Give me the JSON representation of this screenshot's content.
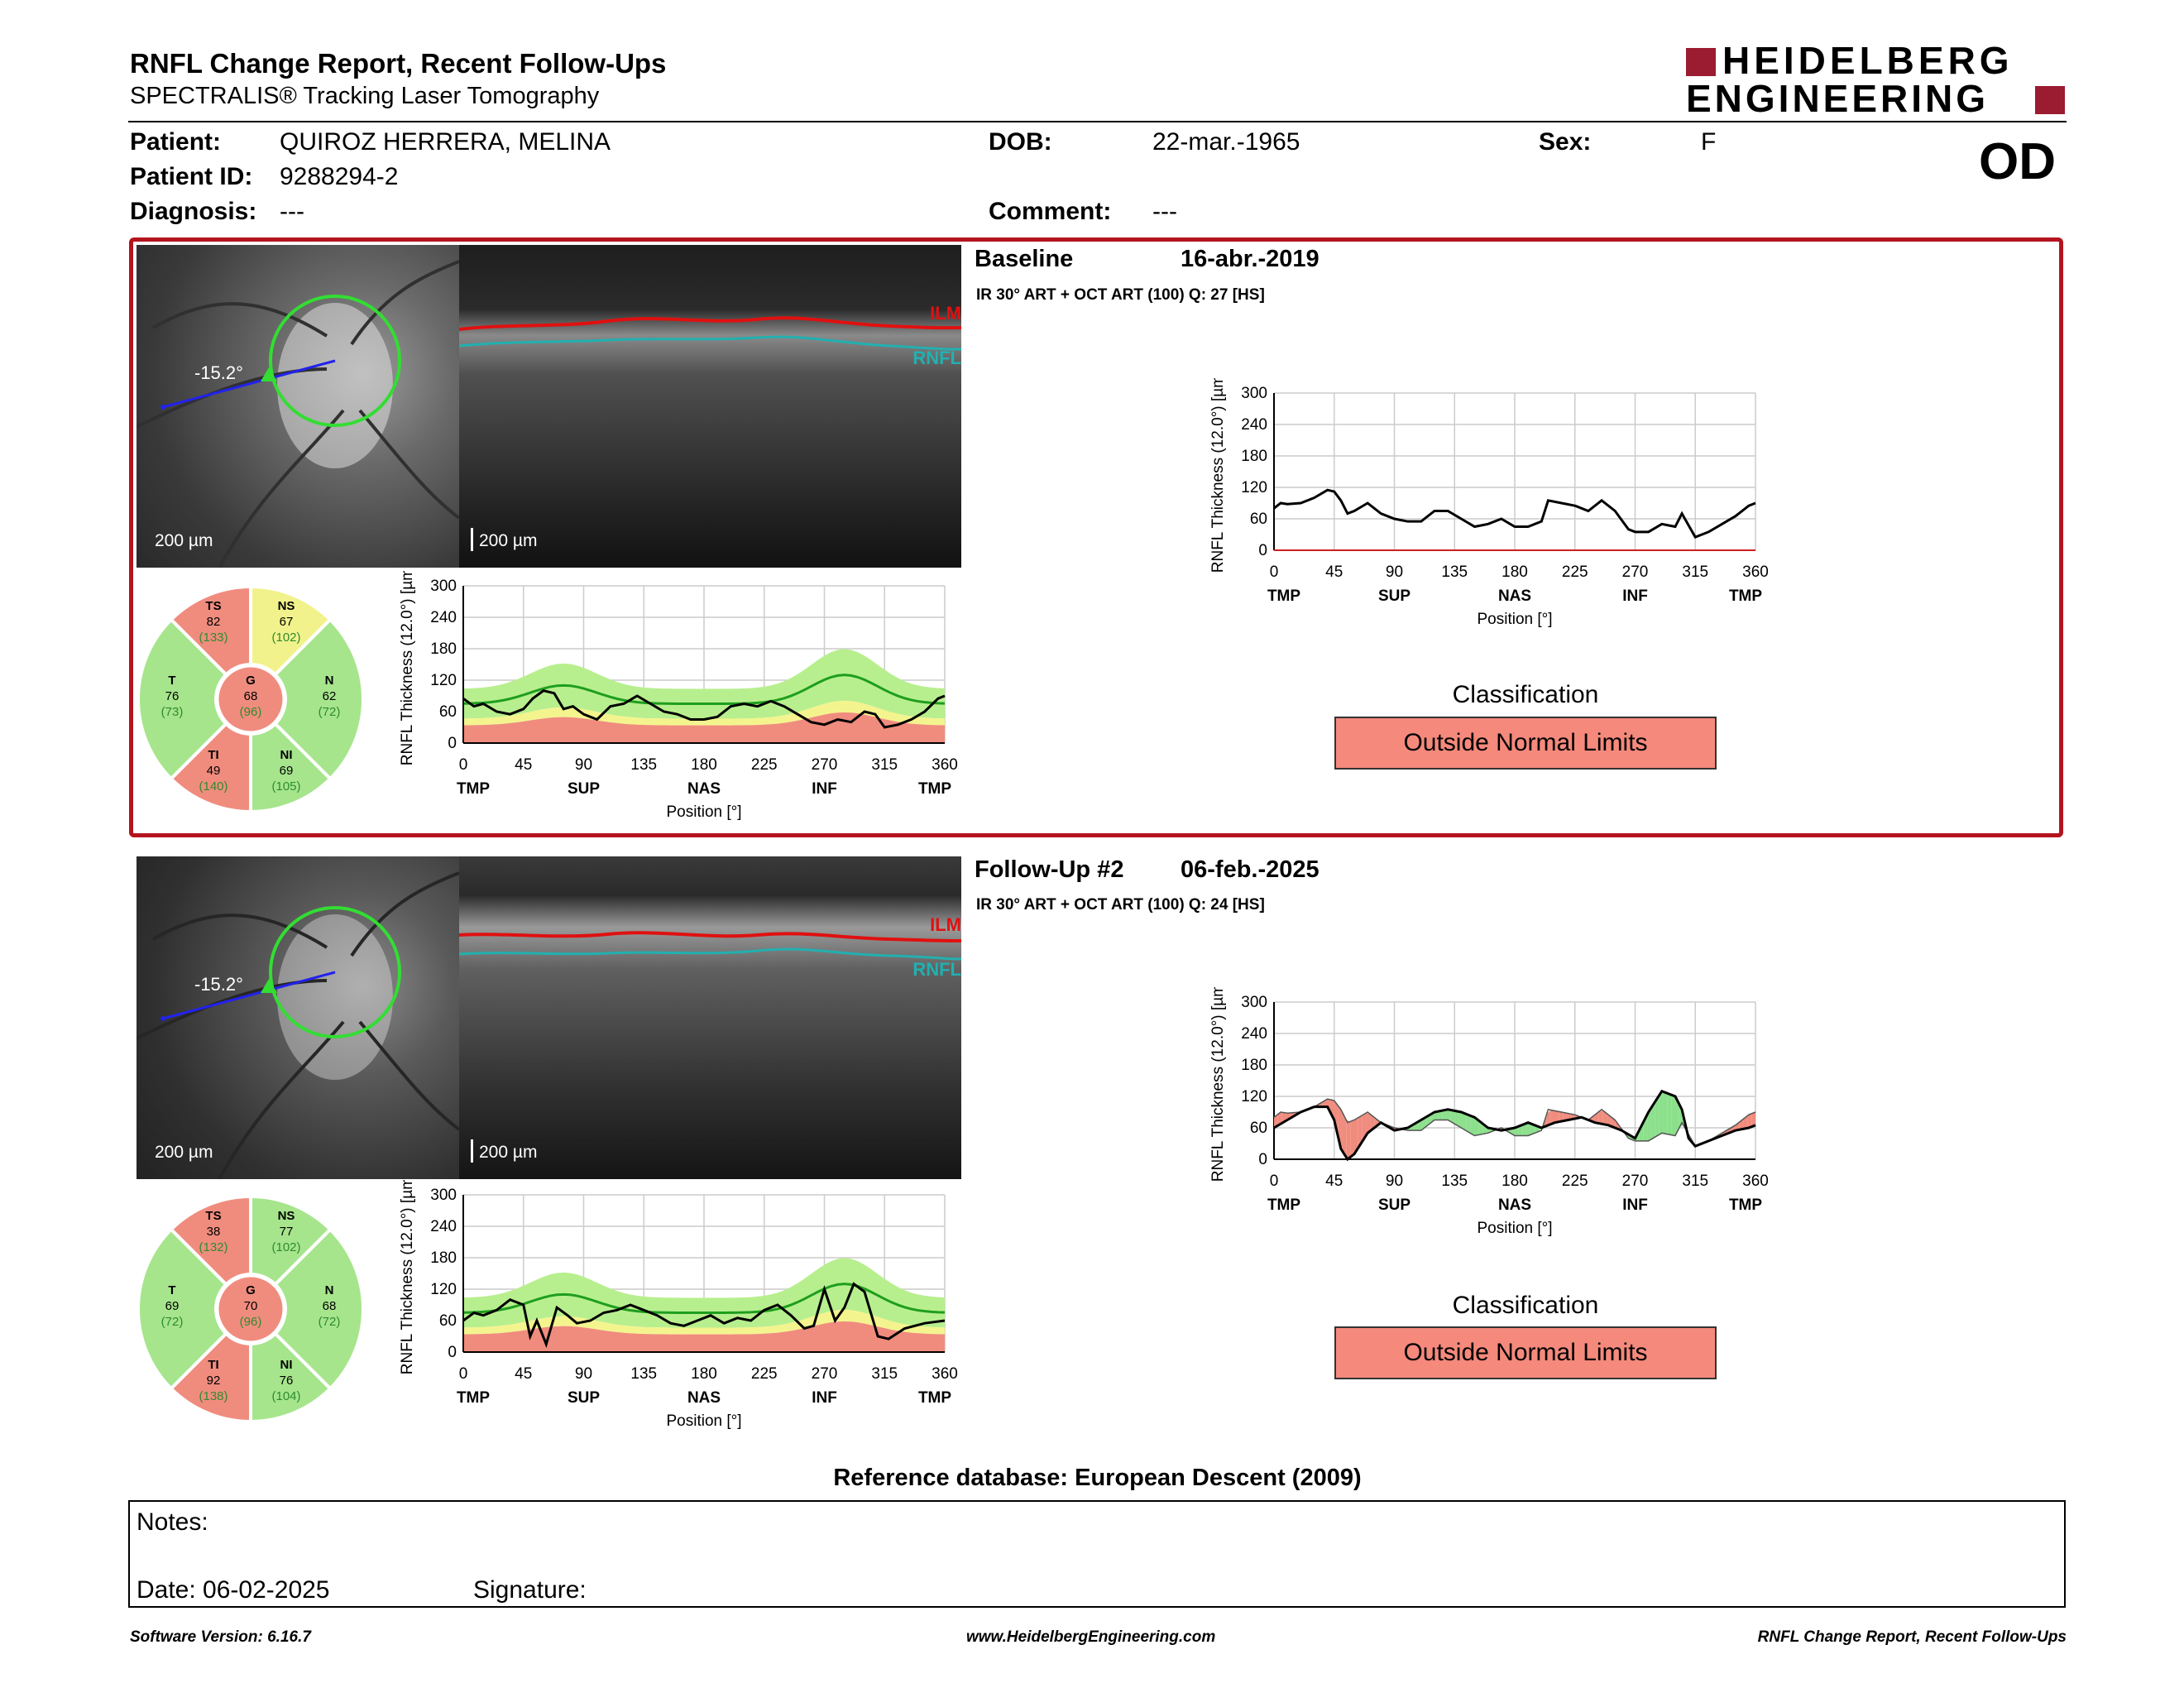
{
  "header": {
    "title": "RNFL Change Report, Recent Follow-Ups",
    "subtitle": "SPECTRALIS® Tracking Laser Tomography",
    "logo_line1": "HEIDELBERG",
    "logo_line2": "ENGINEERING",
    "eye": "OD"
  },
  "patient": {
    "patient_label": "Patient:",
    "patient_value": "QUIROZ HERRERA, MELINA",
    "id_label": "Patient ID:",
    "id_value": "9288294-2",
    "diagnosis_label": "Diagnosis:",
    "diagnosis_value": "---",
    "dob_label": "DOB:",
    "dob_value": "22-mar.-1965",
    "comment_label": "Comment:",
    "comment_value": "---",
    "sex_label": "Sex:",
    "sex_value": "F"
  },
  "exams": [
    {
      "title": "Baseline",
      "date": "16-abr.-2019",
      "scan_info": "IR 30° ART + OCT ART (100) Q: 27 [HS]",
      "angle": "-15.2°",
      "scale_fundus": "200 µm",
      "scale_oct": "200 µm",
      "ilm": "ILM",
      "rnfl": "RNFL",
      "classification_label": "Classification",
      "classification": "Outside Normal Limits",
      "sectors": {
        "TS": {
          "label": "TS",
          "value": "82",
          "ref": "(133)"
        },
        "NS": {
          "label": "NS",
          "value": "67",
          "ref": "(102)"
        },
        "T": {
          "label": "T",
          "value": "76",
          "ref": "(73)"
        },
        "G": {
          "label": "G",
          "value": "68",
          "ref": "(96)"
        },
        "N": {
          "label": "N",
          "value": "62",
          "ref": "(72)"
        },
        "TI": {
          "label": "TI",
          "value": "49",
          "ref": "(140)"
        },
        "NI": {
          "label": "NI",
          "value": "69",
          "ref": "(105)"
        }
      },
      "sector_colors": {
        "TS": "#f08c7e",
        "NS": "#f2f28c",
        "T": "#a6e58c",
        "G": "#f08c7e",
        "N": "#a6e58c",
        "TI": "#f08c7e",
        "NI": "#a6e58c"
      }
    },
    {
      "title": "Follow-Up #2",
      "date": "06-feb.-2025",
      "scan_info": "IR 30° ART + OCT ART (100) Q: 24 [HS]",
      "angle": "-15.2°",
      "scale_fundus": "200 µm",
      "scale_oct": "200 µm",
      "ilm": "ILM",
      "rnfl": "RNFL",
      "classification_label": "Classification",
      "classification": "Outside Normal Limits",
      "sectors": {
        "TS": {
          "label": "TS",
          "value": "38",
          "ref": "(132)"
        },
        "NS": {
          "label": "NS",
          "value": "77",
          "ref": "(102)"
        },
        "T": {
          "label": "T",
          "value": "69",
          "ref": "(72)"
        },
        "G": {
          "label": "G",
          "value": "70",
          "ref": "(96)"
        },
        "N": {
          "label": "N",
          "value": "68",
          "ref": "(72)"
        },
        "TI": {
          "label": "TI",
          "value": "92",
          "ref": "(138)"
        },
        "NI": {
          "label": "NI",
          "value": "76",
          "ref": "(104)"
        }
      },
      "sector_colors": {
        "TS": "#f08c7e",
        "NS": "#a6e58c",
        "T": "#a6e58c",
        "G": "#f08c7e",
        "N": "#a6e58c",
        "TI": "#f08c7e",
        "NI": "#a6e58c"
      }
    }
  ],
  "chart_data": [
    {
      "type": "line",
      "ylabel": "RNFL Thickness (12.0°) [µm]",
      "xlabel": "Position [°]",
      "xticks": [
        "0",
        "45",
        "90",
        "135",
        "180",
        "225",
        "270",
        "315",
        "360"
      ],
      "xsectors": [
        "TMP",
        "SUP",
        "NAS",
        "INF",
        "TMP"
      ],
      "yticks": [
        "300",
        "240",
        "180",
        "120",
        "60",
        "0"
      ],
      "xlim": [
        0,
        360
      ],
      "ylim": [
        0,
        300
      ],
      "series": [
        {
          "x": [
            0,
            8,
            15,
            25,
            35,
            45,
            52,
            60,
            68,
            75,
            82,
            90,
            100,
            110,
            120,
            130,
            140,
            150,
            160,
            170,
            180,
            190,
            200,
            210,
            220,
            230,
            240,
            250,
            260,
            270,
            280,
            290,
            300,
            308,
            315,
            325,
            335,
            345,
            355,
            360
          ],
          "y": [
            85,
            70,
            75,
            60,
            55,
            65,
            85,
            100,
            95,
            65,
            70,
            55,
            45,
            70,
            75,
            90,
            75,
            60,
            55,
            45,
            45,
            50,
            70,
            75,
            70,
            80,
            70,
            55,
            40,
            35,
            45,
            40,
            60,
            55,
            30,
            35,
            45,
            60,
            85,
            90
          ]
        }
      ]
    },
    {
      "type": "line",
      "ylabel": "RNFL Thickness (12.0°) [µm]",
      "xlabel": "Position [°]",
      "xticks": [
        "0",
        "45",
        "90",
        "135",
        "180",
        "225",
        "270",
        "315",
        "360"
      ],
      "xsectors": [
        "TMP",
        "SUP",
        "NAS",
        "INF",
        "TMP"
      ],
      "yticks": [
        "300",
        "240",
        "180",
        "120",
        "60",
        "0"
      ],
      "xlim": [
        0,
        360
      ],
      "ylim": [
        0,
        300
      ],
      "series": [
        {
          "x": [
            0,
            8,
            15,
            25,
            35,
            45,
            50,
            55,
            62,
            70,
            78,
            85,
            95,
            105,
            115,
            125,
            135,
            145,
            155,
            165,
            175,
            185,
            195,
            205,
            215,
            225,
            235,
            245,
            255,
            262,
            270,
            278,
            285,
            292,
            300,
            310,
            318,
            330,
            345,
            360
          ],
          "y": [
            60,
            75,
            70,
            80,
            100,
            90,
            30,
            60,
            15,
            85,
            70,
            55,
            60,
            75,
            80,
            90,
            80,
            70,
            55,
            50,
            60,
            70,
            55,
            65,
            60,
            80,
            90,
            70,
            45,
            50,
            120,
            60,
            85,
            130,
            115,
            30,
            25,
            45,
            55,
            60
          ]
        }
      ]
    },
    {
      "type": "line",
      "ylabel": "RNFL Thickness (12.0°) [µm]",
      "xlabel": "Position [°]",
      "xticks": [
        "0",
        "45",
        "90",
        "135",
        "180",
        "225",
        "270",
        "315",
        "360"
      ],
      "xsectors": [
        "TMP",
        "SUP",
        "NAS",
        "INF",
        "TMP"
      ],
      "yticks": [
        "300",
        "240",
        "180",
        "120",
        "60",
        "0"
      ],
      "xlim": [
        0,
        360
      ],
      "ylim": [
        0,
        300
      ],
      "series": [
        {
          "x": [
            0,
            5,
            10,
            20,
            30,
            40,
            45,
            50,
            55,
            60,
            70,
            80,
            90,
            100,
            110,
            120,
            130,
            140,
            150,
            160,
            170,
            180,
            190,
            200,
            205,
            215,
            225,
            235,
            245,
            255,
            265,
            270,
            280,
            290,
            300,
            305,
            315,
            325,
            335,
            345,
            355,
            360
          ],
          "y": [
            80,
            90,
            88,
            90,
            100,
            115,
            112,
            95,
            70,
            75,
            90,
            70,
            60,
            55,
            55,
            75,
            75,
            60,
            45,
            50,
            60,
            45,
            45,
            55,
            95,
            90,
            85,
            75,
            95,
            75,
            40,
            35,
            35,
            50,
            45,
            70,
            25,
            35,
            50,
            65,
            85,
            90
          ]
        }
      ]
    },
    {
      "type": "line",
      "ylabel": "RNFL Thickness (12.0°) [µm]",
      "xlabel": "Position [°]",
      "xticks": [
        "0",
        "45",
        "90",
        "135",
        "180",
        "225",
        "270",
        "315",
        "360"
      ],
      "xsectors": [
        "TMP",
        "SUP",
        "NAS",
        "INF",
        "TMP"
      ],
      "yticks": [
        "300",
        "240",
        "180",
        "120",
        "60",
        "0"
      ],
      "xlim": [
        0,
        360
      ],
      "ylim": [
        0,
        300
      ],
      "series": [
        {
          "name": "Follow-Up #2",
          "x": [
            0,
            10,
            20,
            30,
            40,
            45,
            50,
            55,
            60,
            70,
            80,
            90,
            100,
            110,
            120,
            130,
            140,
            150,
            160,
            170,
            180,
            190,
            200,
            210,
            220,
            230,
            240,
            250,
            260,
            270,
            280,
            290,
            300,
            305,
            310,
            315,
            325,
            335,
            345,
            355,
            360
          ],
          "y": [
            60,
            75,
            90,
            100,
            100,
            75,
            20,
            0,
            10,
            50,
            70,
            55,
            60,
            75,
            90,
            95,
            90,
            80,
            60,
            55,
            60,
            70,
            60,
            70,
            75,
            80,
            70,
            65,
            55,
            40,
            90,
            130,
            120,
            95,
            40,
            25,
            35,
            45,
            55,
            60,
            65
          ]
        }
      ]
    }
  ],
  "reference_db": "Reference database: European Descent (2009)",
  "notes": {
    "notes_label": "Notes:",
    "date_label": "Date: 06-02-2025",
    "signature_label": "Signature:"
  },
  "footer": {
    "version": "Software Version: 6.16.7",
    "url": "www.HeidelbergEngineering.com",
    "report": "RNFL Change Report, Recent Follow-Ups"
  }
}
